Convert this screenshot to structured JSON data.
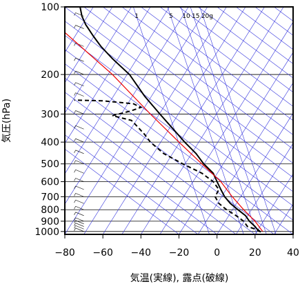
{
  "chart_data": {
    "type": "line",
    "title": "",
    "xlabel": "気温(実線), 露点(破線)",
    "ylabel": "気圧(hPa)",
    "xlim": [
      -80,
      40
    ],
    "ylim": [
      1030,
      100
    ],
    "y_scale": "log",
    "x_ticks": [
      "−80",
      "−60",
      "−40",
      "−20",
      "0",
      "20",
      "40"
    ],
    "y_ticks": [
      "100",
      "200",
      "300",
      "400",
      "500",
      "600",
      "700",
      "800",
      "900",
      "1000"
    ],
    "mixing_ratio_labels": [
      "1",
      "5",
      "10",
      "15",
      "20g"
    ],
    "series": [
      {
        "style": "solid",
        "color": "#000000",
        "points": [
          [
            23,
            1005
          ],
          [
            21,
            975
          ],
          [
            20,
            950
          ],
          [
            17,
            900
          ],
          [
            15,
            850
          ],
          [
            11,
            800
          ],
          [
            7,
            750
          ],
          [
            4,
            700
          ],
          [
            2,
            650
          ],
          [
            0,
            600
          ],
          [
            -2,
            550
          ],
          [
            -7,
            500
          ],
          [
            -11,
            450
          ],
          [
            -17,
            400
          ],
          [
            -23,
            350
          ],
          [
            -30,
            300
          ],
          [
            -38,
            250
          ],
          [
            -46,
            200
          ],
          [
            -55,
            170
          ],
          [
            -61,
            150
          ],
          [
            -65,
            135
          ],
          [
            -69,
            120
          ],
          [
            -71,
            110
          ],
          [
            -72,
            100
          ]
        ]
      },
      {
        "style": "dashed",
        "color": "#000000",
        "points": [
          [
            23,
            1005
          ],
          [
            20,
            975
          ],
          [
            16,
            950
          ],
          [
            14,
            900
          ],
          [
            10,
            850
          ],
          [
            5,
            800
          ],
          [
            1,
            750
          ],
          [
            -1,
            700
          ],
          [
            1,
            650
          ],
          [
            -2,
            600
          ],
          [
            -8,
            550
          ],
          [
            -18,
            500
          ],
          [
            -28,
            450
          ],
          [
            -35,
            400
          ],
          [
            -38,
            370
          ],
          [
            -42,
            340
          ],
          [
            -45,
            320
          ],
          [
            -55,
            305
          ],
          [
            -45,
            290
          ],
          [
            -40,
            280
          ],
          [
            -44,
            270
          ],
          [
            -60,
            262
          ],
          [
            -75,
            260
          ]
        ]
      },
      {
        "style": "solid",
        "color": "#ee0000",
        "points": [
          [
            24,
            1000
          ],
          [
            20,
            900
          ],
          [
            14,
            800
          ],
          [
            8,
            700
          ],
          [
            2,
            600
          ],
          [
            -8,
            500
          ],
          [
            -20,
            400
          ],
          [
            -35,
            300
          ],
          [
            -55,
            200
          ],
          [
            -80,
            130
          ]
        ]
      }
    ],
    "wind_profile": "wind barbs along left axis from 1000 to 100 hPa"
  }
}
